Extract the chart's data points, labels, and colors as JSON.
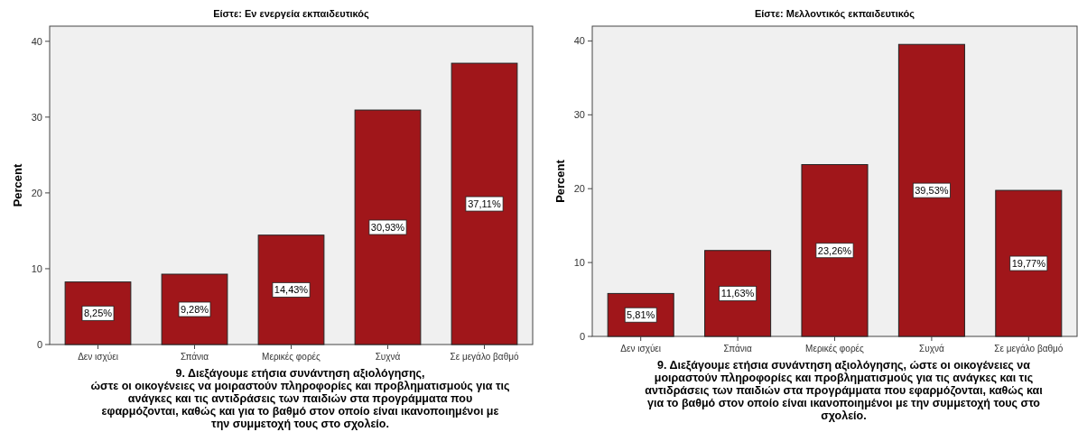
{
  "chart_data": [
    {
      "type": "bar",
      "title": "Είστε: Εν ενεργεία εκπαιδευτικός",
      "ylabel": "Percent",
      "xlabel": "9. Διεξάγουμε ετήσια συνάντηση αξιολόγησης,\nώστε οι οικογένειες να μοιραστούν πληροφορίες και προβληματισμούς για τις\nανάγκες και τις αντιδράσεις των παιδιών στα προγράμματα που\nεφαρμόζονται, καθώς και για το βαθμό στον οποίο είναι ικανοποιημένοι με\nτην συμμετοχή τους στο σχολείο.",
      "categories": [
        "Δεν ισχύει",
        "Σπάνια",
        "Μερικές φορές",
        "Συχνά",
        "Σε μεγάλο βαθμό"
      ],
      "values": [
        8.25,
        9.28,
        14.43,
        30.93,
        37.11
      ],
      "value_labels": [
        "8,25%",
        "9,28%",
        "14,43%",
        "30,93%",
        "37,11%"
      ],
      "color": "#a0161a",
      "ylim": [
        0,
        42
      ],
      "yticks": [
        0,
        10,
        20,
        30,
        40
      ],
      "grid": false
    },
    {
      "type": "bar",
      "title": "Είστε: Μελλοντικός εκπαιδευτικός",
      "ylabel": "Percent",
      "xlabel": "9. Διεξάγουμε ετήσια συνάντηση αξιολόγησης, ώστε οι οικογένειες να\nμοιραστούν πληροφορίες και προβληματισμούς για τις ανάγκες και τις\nαντιδράσεις των παιδιών στα προγράμματα που εφαρμόζονται, καθώς και\nγια το βαθμό στον οποίο είναι ικανοποιημένοι με την συμμετοχή τους στο\nσχολείο.",
      "categories": [
        "Δεν ισχύει",
        "Σπάνια",
        "Μερικές φορές",
        "Συχνά",
        "Σε μεγάλο βαθμό"
      ],
      "values": [
        5.81,
        11.63,
        23.26,
        39.53,
        19.77
      ],
      "value_labels": [
        "5,81%",
        "11,63%",
        "23,26%",
        "39,53%",
        "19,77%"
      ],
      "color": "#a0161a",
      "ylim": [
        0,
        42
      ],
      "yticks": [
        0,
        10,
        20,
        30,
        40
      ],
      "grid": false
    }
  ]
}
